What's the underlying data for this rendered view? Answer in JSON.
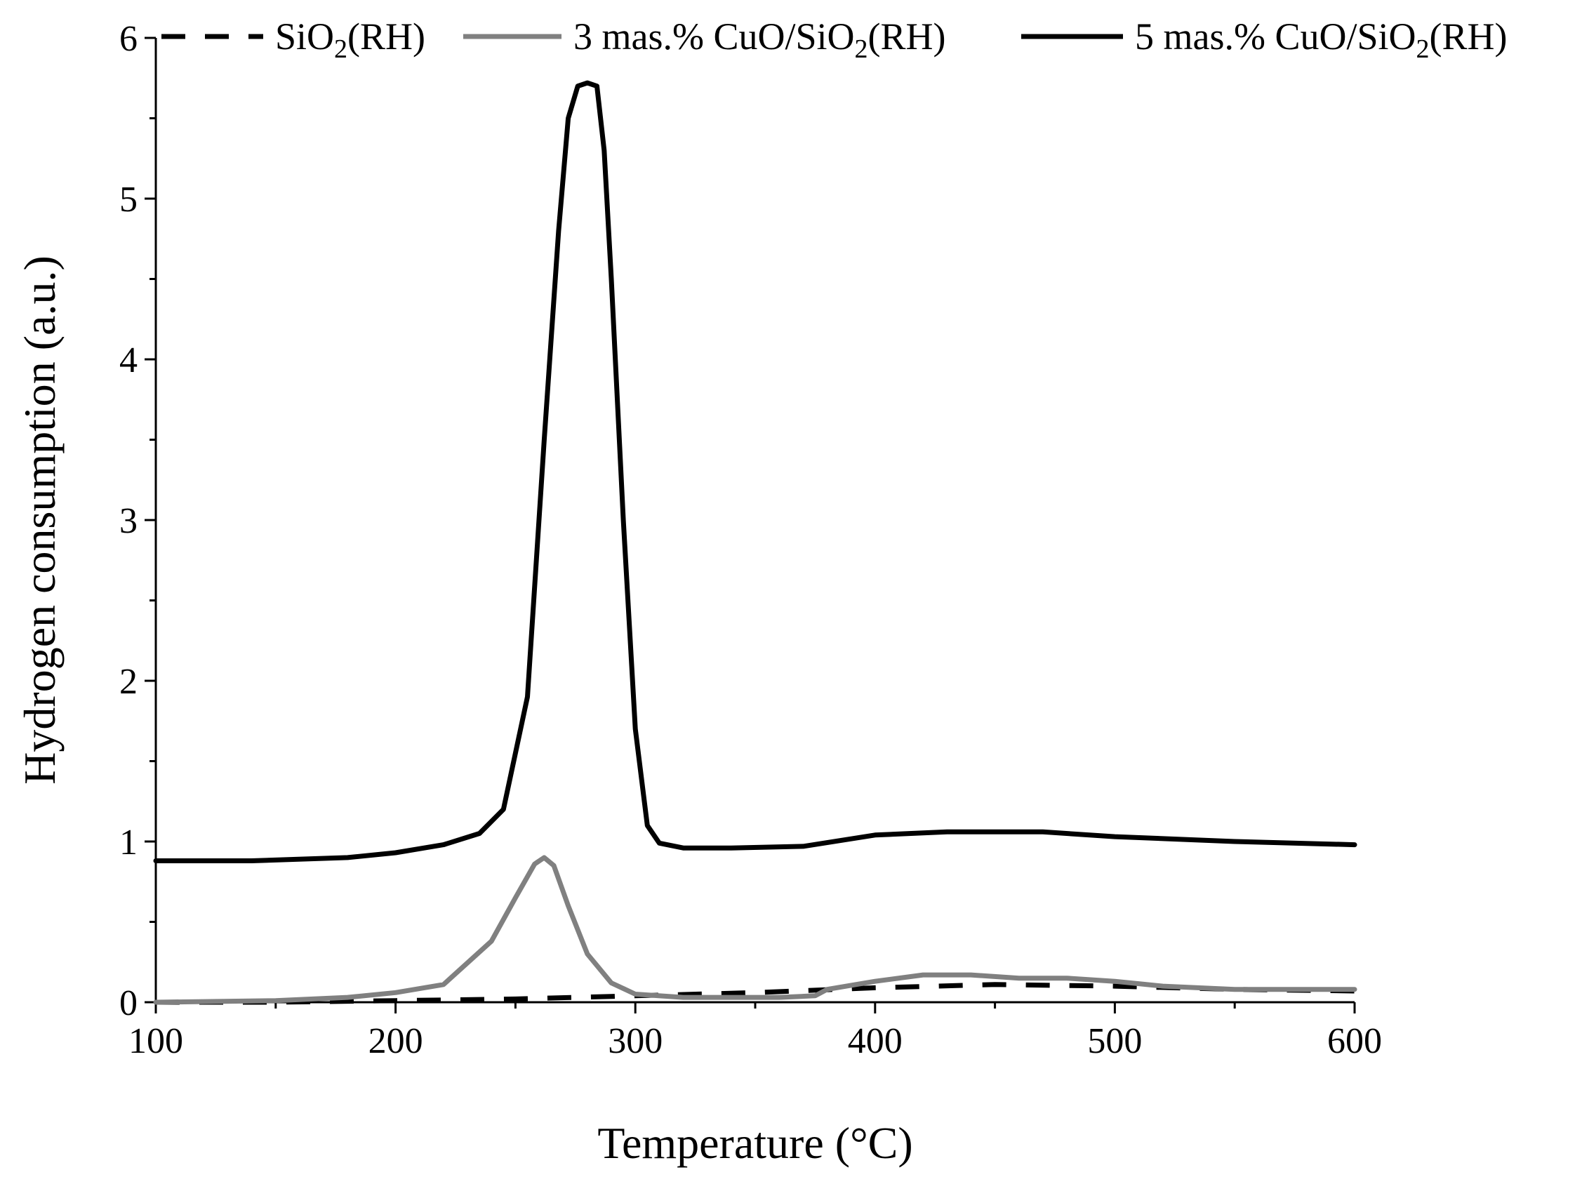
{
  "chart_data": {
    "type": "line",
    "title": "",
    "xlabel": "Temperature (°C)",
    "ylabel": "Hydrogen consumption (a.u.)",
    "xlim": [
      100,
      600
    ],
    "ylim": [
      0,
      6
    ],
    "x_ticks": [
      100,
      200,
      300,
      400,
      500,
      600
    ],
    "y_ticks": [
      0,
      1,
      2,
      3,
      4,
      5,
      6
    ],
    "grid": false,
    "legend_position": "top",
    "series": [
      {
        "name": "SiO2(RH)",
        "name_parts": [
          "SiO",
          "2",
          "(RH)"
        ],
        "color": "#000000",
        "dash": "dashed",
        "x": [
          100,
          150,
          200,
          250,
          300,
          350,
          400,
          450,
          500,
          550,
          600
        ],
        "y": [
          0.0,
          0.0,
          0.01,
          0.02,
          0.04,
          0.06,
          0.09,
          0.11,
          0.1,
          0.08,
          0.07
        ]
      },
      {
        "name": "3 mas.% CuO/SiO2(RH)",
        "name_parts": [
          "3 mas.% CuO/SiO",
          "2",
          "(RH)"
        ],
        "color": "#808080",
        "dash": "solid",
        "x": [
          100,
          150,
          180,
          200,
          220,
          240,
          250,
          258,
          262,
          266,
          272,
          280,
          290,
          300,
          320,
          340,
          360,
          375,
          380,
          400,
          420,
          440,
          460,
          480,
          500,
          520,
          550,
          600
        ],
        "y": [
          0.0,
          0.01,
          0.03,
          0.06,
          0.11,
          0.38,
          0.65,
          0.86,
          0.9,
          0.85,
          0.6,
          0.3,
          0.12,
          0.05,
          0.03,
          0.03,
          0.03,
          0.04,
          0.08,
          0.13,
          0.17,
          0.17,
          0.15,
          0.15,
          0.13,
          0.1,
          0.08,
          0.08
        ]
      },
      {
        "name": "5 mas.% CuO/SiO2(RH)",
        "name_parts": [
          "5 mas.% CuO/SiO",
          "2",
          "(RH)"
        ],
        "color": "#000000",
        "dash": "solid",
        "x": [
          100,
          140,
          180,
          200,
          220,
          235,
          245,
          255,
          262,
          268,
          272,
          276,
          280,
          284,
          287,
          290,
          295,
          300,
          305,
          310,
          320,
          340,
          370,
          400,
          430,
          470,
          500,
          550,
          600
        ],
        "y": [
          0.88,
          0.88,
          0.9,
          0.93,
          0.98,
          1.05,
          1.2,
          1.9,
          3.5,
          4.8,
          5.5,
          5.7,
          5.72,
          5.7,
          5.3,
          4.5,
          3.0,
          1.7,
          1.1,
          0.99,
          0.96,
          0.96,
          0.97,
          1.04,
          1.06,
          1.06,
          1.03,
          1.0,
          0.98
        ]
      }
    ]
  }
}
